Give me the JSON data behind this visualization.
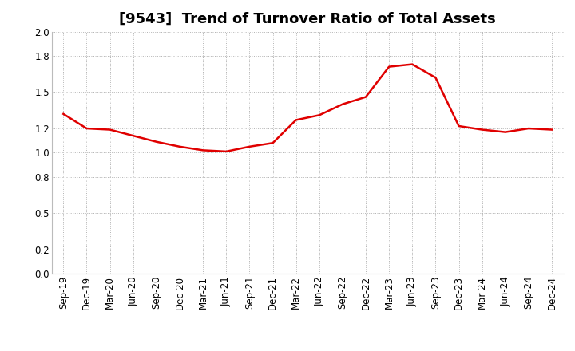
{
  "title": "[9543]  Trend of Turnover Ratio of Total Assets",
  "x_labels": [
    "Sep-19",
    "Dec-19",
    "Mar-20",
    "Jun-20",
    "Sep-20",
    "Dec-20",
    "Mar-21",
    "Jun-21",
    "Sep-21",
    "Dec-21",
    "Mar-22",
    "Jun-22",
    "Sep-22",
    "Dec-22",
    "Mar-23",
    "Jun-23",
    "Sep-23",
    "Dec-23",
    "Mar-24",
    "Jun-24",
    "Sep-24",
    "Dec-24"
  ],
  "y_values": [
    1.32,
    1.2,
    1.19,
    1.14,
    1.09,
    1.05,
    1.02,
    1.01,
    1.05,
    1.08,
    1.27,
    1.31,
    1.4,
    1.46,
    1.71,
    1.73,
    1.62,
    1.22,
    1.19,
    1.17,
    1.2,
    1.19
  ],
  "line_color": "#e00000",
  "line_width": 1.8,
  "ylim": [
    0.0,
    2.0
  ],
  "yticks": [
    0.0,
    0.2,
    0.5,
    0.8,
    1.0,
    1.2,
    1.5,
    1.8,
    2.0
  ],
  "background_color": "#ffffff",
  "grid_color": "#aaaaaa",
  "title_fontsize": 13,
  "tick_fontsize": 8.5
}
